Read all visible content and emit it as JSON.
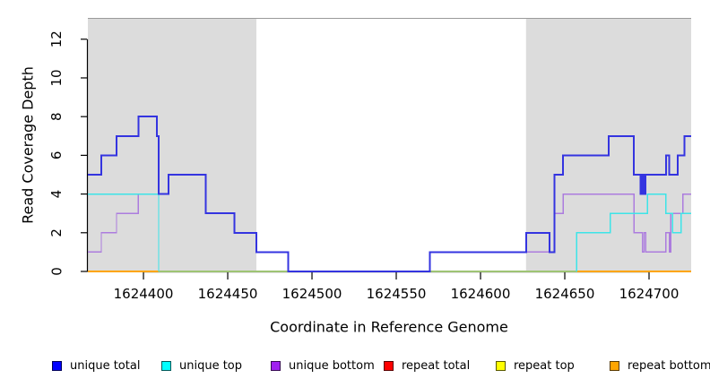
{
  "chart_data": {
    "type": "line",
    "subtype": "step-coverage-plot",
    "title": "",
    "xlabel": "Coordinate in Reference Genome",
    "ylabel": "Read Coverage Depth",
    "xlim": [
      1624367,
      1624725
    ],
    "ylim": [
      0,
      13.1
    ],
    "grid": false,
    "x_ticks": [
      {
        "value": 1624400,
        "label": "1624400"
      },
      {
        "value": 1624450,
        "label": "1624450"
      },
      {
        "value": 1624500,
        "label": "1624500"
      },
      {
        "value": 1624550,
        "label": "1624550"
      },
      {
        "value": 1624600,
        "label": "1624600"
      },
      {
        "value": 1624650,
        "label": "1624650"
      },
      {
        "value": 1624700,
        "label": "1624700"
      }
    ],
    "y_ticks": [
      {
        "value": 0,
        "label": "0"
      },
      {
        "value": 2,
        "label": "2"
      },
      {
        "value": 4,
        "label": "4"
      },
      {
        "value": 6,
        "label": "6"
      },
      {
        "value": 8,
        "label": "8"
      },
      {
        "value": 10,
        "label": "10"
      },
      {
        "value": 12,
        "label": "12"
      }
    ],
    "shaded_regions": [
      {
        "from": 1624367,
        "to": 1624467,
        "color": "#DCDCDC"
      },
      {
        "from": 1624627,
        "to": 1624725,
        "color": "#DCDCDC"
      }
    ],
    "series": [
      {
        "name": "repeat total",
        "color": "#FF0000",
        "width": 1.4,
        "start": 1624367,
        "segments": [
          [
            0,
            1624725
          ]
        ]
      },
      {
        "name": "repeat top",
        "color": "#FFFF00",
        "width": 1.4,
        "start": 1624367,
        "segments": [
          [
            0,
            1624725
          ]
        ]
      },
      {
        "name": "repeat bottom",
        "color": "#FFA500",
        "width": 2,
        "start": 1624367,
        "segments": [
          [
            0,
            1624725
          ]
        ]
      },
      {
        "name": "unlabeled green baseline",
        "color": "#90EE90",
        "width": 1.4,
        "start": 1624409,
        "segments": [
          [
            0,
            1624643
          ]
        ]
      },
      {
        "name": "unique bottom",
        "color": "#AC7CDE",
        "width": 1.4,
        "start": 1624367,
        "segments": [
          [
            1,
            1624375
          ],
          [
            2,
            1624384
          ],
          [
            3,
            1624397
          ],
          [
            4,
            1624409
          ],
          [
            0,
            1624570
          ],
          [
            1,
            1624644
          ],
          [
            3,
            1624649
          ],
          [
            4,
            1624691
          ],
          [
            2,
            1624696
          ],
          [
            1,
            1624697
          ],
          [
            2,
            1624698
          ],
          [
            1,
            1624710
          ],
          [
            2,
            1624712
          ],
          [
            1,
            1624713
          ],
          [
            3,
            1624720
          ],
          [
            4,
            1624725
          ]
        ]
      },
      {
        "name": "unique top",
        "color": "#3DE4E8",
        "width": 1.4,
        "start": 1624367,
        "segments": [
          [
            4,
            1624409
          ],
          [
            0,
            1624657
          ],
          [
            2,
            1624677
          ],
          [
            3,
            1624699
          ],
          [
            4,
            1624710
          ],
          [
            3,
            1624714
          ],
          [
            2,
            1624719
          ],
          [
            3,
            1624725
          ]
        ]
      },
      {
        "name": "unique total",
        "color": "#3434E0",
        "width": 2,
        "start": 1624367,
        "segments": [
          [
            5,
            1624375
          ],
          [
            6,
            1624384
          ],
          [
            7,
            1624397
          ],
          [
            8,
            1624408
          ],
          [
            7,
            1624409
          ],
          [
            4,
            1624415
          ],
          [
            5,
            1624437
          ],
          [
            3,
            1624454
          ],
          [
            2,
            1624467
          ],
          [
            1,
            1624486
          ],
          [
            0,
            1624570
          ],
          [
            1,
            1624627
          ],
          [
            2,
            1624641
          ],
          [
            1,
            1624644
          ],
          [
            5,
            1624649
          ],
          [
            6,
            1624676
          ],
          [
            7,
            1624691
          ],
          [
            5,
            1624695
          ],
          [
            4,
            1624696
          ],
          [
            5,
            1624697
          ],
          [
            4,
            1624698
          ],
          [
            5,
            1624710
          ],
          [
            6,
            1624712
          ],
          [
            5,
            1624717
          ],
          [
            6,
            1624721
          ],
          [
            7,
            1624725
          ]
        ]
      }
    ],
    "legend": [
      {
        "label": "unique total",
        "color": "#0000FF"
      },
      {
        "label": "unique top",
        "color": "#00FFFF"
      },
      {
        "label": "unique bottom",
        "color": "#A020F0"
      },
      {
        "label": "repeat total",
        "color": "#FF0000"
      },
      {
        "label": "repeat top",
        "color": "#FFFF00"
      },
      {
        "label": "repeat bottom",
        "color": "#FFA500"
      }
    ],
    "legend_position": "bottom"
  }
}
